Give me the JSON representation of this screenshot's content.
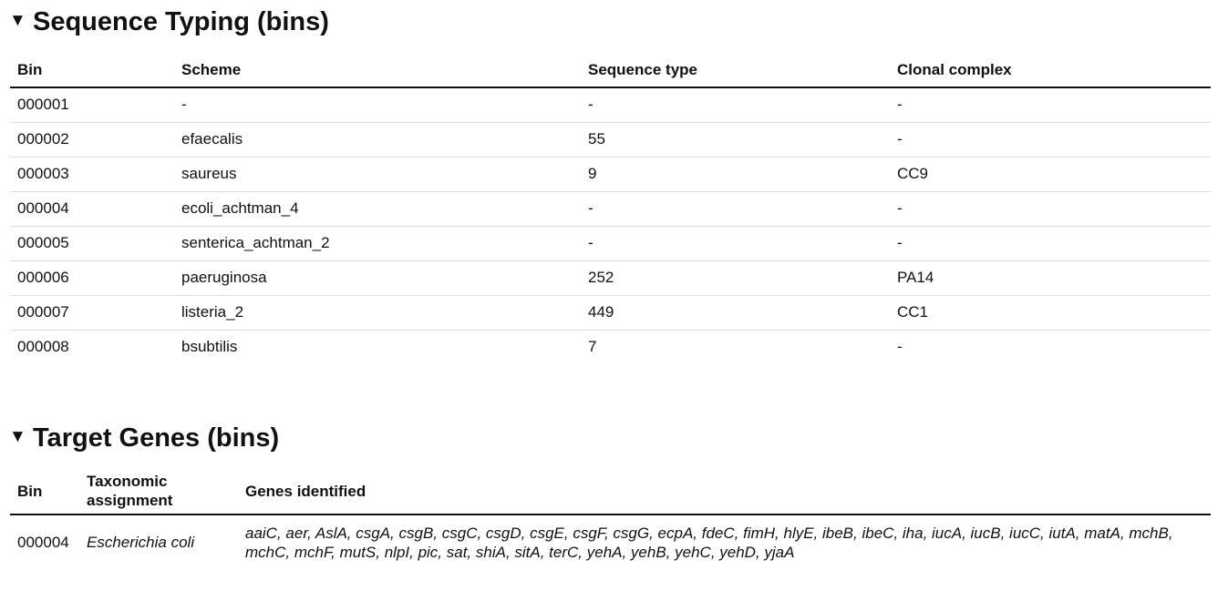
{
  "sequence_typing": {
    "title": "Sequence Typing (bins)",
    "toggle_icon": "▼",
    "columns": [
      "Bin",
      "Scheme",
      "Sequence type",
      "Clonal complex"
    ],
    "rows": [
      [
        "000001",
        "-",
        "-",
        "-"
      ],
      [
        "000002",
        "efaecalis",
        "55",
        "-"
      ],
      [
        "000003",
        "saureus",
        "9",
        "CC9"
      ],
      [
        "000004",
        "ecoli_achtman_4",
        "-",
        "-"
      ],
      [
        "000005",
        "senterica_achtman_2",
        "-",
        "-"
      ],
      [
        "000006",
        "paeruginosa",
        "252",
        "PA14"
      ],
      [
        "000007",
        "listeria_2",
        "449",
        "CC1"
      ],
      [
        "000008",
        "bsubtilis",
        "7",
        "-"
      ]
    ]
  },
  "target_genes": {
    "title": "Target Genes (bins)",
    "toggle_icon": "▼",
    "columns": [
      "Bin",
      "Taxonomic assignment",
      "Genes identified"
    ],
    "rows": [
      [
        "000004",
        "Escherichia coli",
        "aaiC, aer, AslA, csgA, csgB, csgC, csgD, csgE, csgF, csgG, ecpA, fdeC, fimH, hlyE, ibeB, ibeC, iha, iucA, iucB, iucC, iutA, matA, mchB, mchC, mchF, mutS, nlpI, pic, sat, shiA, sitA, terC, yehA, yehB, yehC, yehD, yjaA"
      ]
    ]
  }
}
